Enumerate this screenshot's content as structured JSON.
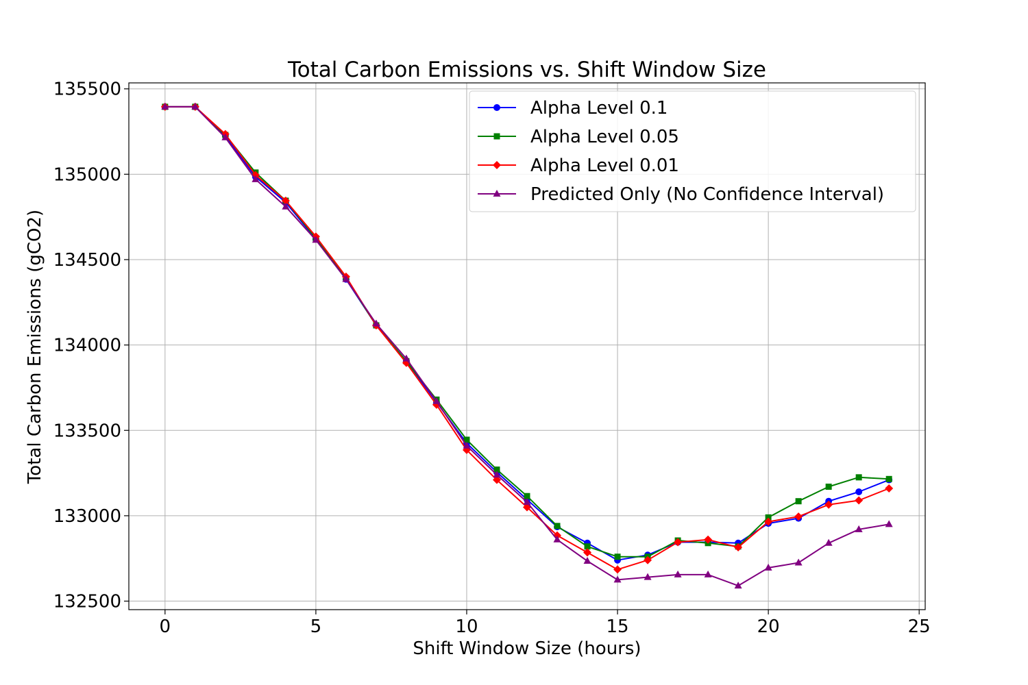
{
  "chart_data": {
    "type": "line",
    "title": "Total Carbon Emissions vs. Shift Window Size",
    "xlabel": "Shift Window Size (hours)",
    "ylabel": "Total Carbon Emissions (gCO2)",
    "xlim": [
      -1.2,
      25.2
    ],
    "ylim": [
      132450,
      135535
    ],
    "xticks": [
      0,
      5,
      10,
      15,
      20,
      25
    ],
    "yticks": [
      132500,
      133000,
      133500,
      134000,
      134500,
      135000,
      135500
    ],
    "grid": true,
    "legend_position": "top-right",
    "x": [
      0,
      1,
      2,
      3,
      4,
      5,
      6,
      7,
      8,
      9,
      10,
      11,
      12,
      13,
      14,
      15,
      16,
      17,
      18,
      19,
      20,
      21,
      22,
      23,
      24
    ],
    "series": [
      {
        "name": "Alpha Level 0.1",
        "color": "#0000ff",
        "marker": "circle",
        "values": [
          135395,
          135395,
          135225,
          134985,
          134835,
          134620,
          134385,
          134115,
          133905,
          133665,
          133425,
          133255,
          133095,
          132935,
          132840,
          132740,
          132770,
          132845,
          132845,
          132840,
          132955,
          132985,
          133085,
          133140,
          133210
        ]
      },
      {
        "name": "Alpha Level 0.05",
        "color": "#008000",
        "marker": "square",
        "values": [
          135395,
          135395,
          135230,
          135010,
          134845,
          134625,
          134390,
          134115,
          133905,
          133680,
          133445,
          133270,
          133115,
          132940,
          132820,
          132760,
          132760,
          132855,
          132840,
          132820,
          132990,
          133085,
          133170,
          133225,
          133215
        ]
      },
      {
        "name": "Alpha Level 0.01",
        "color": "#ff0000",
        "marker": "diamond",
        "values": [
          135395,
          135395,
          135235,
          134995,
          134845,
          134635,
          134400,
          134115,
          133895,
          133650,
          133385,
          133210,
          133050,
          132885,
          132785,
          132685,
          132740,
          132845,
          132860,
          132815,
          132965,
          132995,
          133065,
          133090,
          133160
        ]
      },
      {
        "name": "Predicted Only (No Confidence Interval)",
        "color": "#800080",
        "marker": "triangle",
        "values": [
          135395,
          135395,
          135215,
          134970,
          134810,
          134615,
          134385,
          134125,
          133920,
          133670,
          133410,
          133240,
          133080,
          132860,
          132735,
          132625,
          132640,
          132655,
          132655,
          132590,
          132695,
          132725,
          132840,
          132920,
          132950
        ]
      }
    ]
  }
}
